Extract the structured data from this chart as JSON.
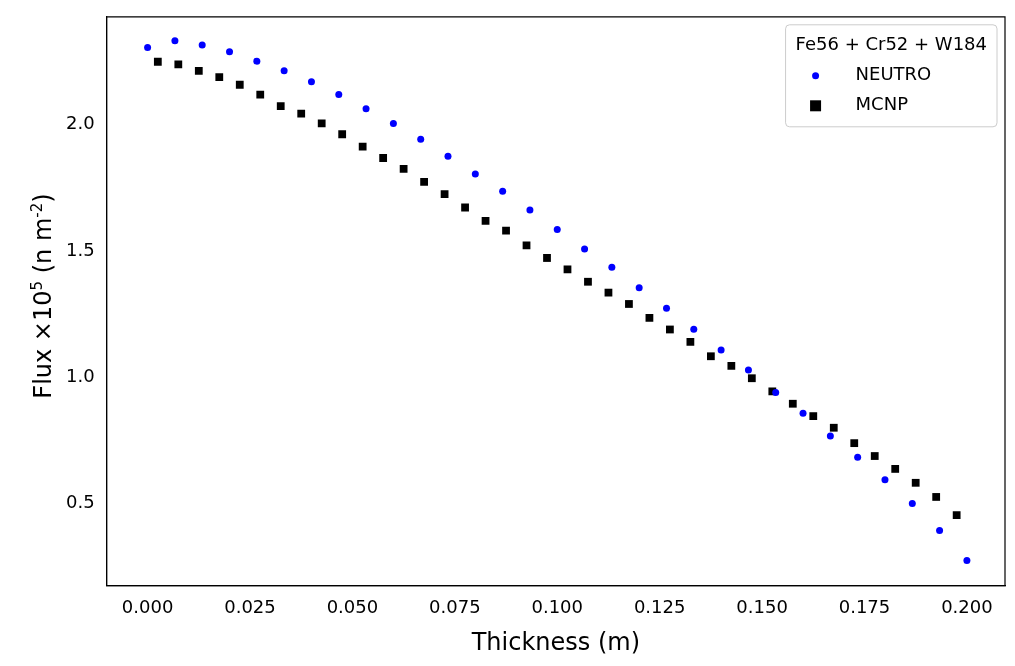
{
  "chart_data": {
    "type": "scatter",
    "xlabel": "Thickness (m)",
    "ylabel": "Flux ×10$^{5}$ (n m$^{-2}$)",
    "legend_title": "Fe56 + Cr52 + W184",
    "legend": "top right",
    "grid": false,
    "xlim": [
      -0.01,
      0.2093
    ],
    "ylim": [
      0.175,
      2.427
    ],
    "xticks": [
      {
        "value": 0,
        "label": "0.000"
      },
      {
        "value": 0.025,
        "label": "0.025"
      },
      {
        "value": 0.05,
        "label": "0.050"
      },
      {
        "value": 0.075,
        "label": "0.075"
      },
      {
        "value": 0.1,
        "label": "0.100"
      },
      {
        "value": 0.125,
        "label": "0.125"
      },
      {
        "value": 0.15,
        "label": "0.150"
      },
      {
        "value": 0.175,
        "label": "0.175"
      },
      {
        "value": 0.2,
        "label": "0.200"
      }
    ],
    "yticks": [
      0.5,
      {
        "value": 1,
        "label": "1.0"
      },
      1.5,
      {
        "value": 2,
        "label": "2.0"
      }
    ],
    "series": [
      {
        "name": "NEUTRO",
        "color": "#0000ff",
        "marker": "circle",
        "x": [
          0,
          0.00667,
          0.01333,
          0.02,
          0.02667,
          0.03333,
          0.04,
          0.04667,
          0.05333,
          0.06,
          0.06667,
          0.07333,
          0.08,
          0.08667,
          0.09333,
          0.1,
          0.10667,
          0.11333,
          0.12,
          0.12667,
          0.13333,
          0.14,
          0.14667,
          0.15333,
          0.16,
          0.16667,
          0.17333,
          0.18,
          0.18667,
          0.19333,
          0.2
        ],
        "values": [
          2.305,
          2.332,
          2.315,
          2.289,
          2.251,
          2.213,
          2.17,
          2.119,
          2.063,
          2.005,
          1.942,
          1.875,
          1.805,
          1.736,
          1.662,
          1.585,
          1.508,
          1.435,
          1.354,
          1.273,
          1.19,
          1.108,
          1.029,
          0.94,
          0.857,
          0.767,
          0.683,
          0.594,
          0.5,
          0.393,
          0.274
        ]
      },
      {
        "name": "MCNP",
        "color": "#000000",
        "marker": "square",
        "x": [
          0.0025,
          0.0075,
          0.0125,
          0.0175,
          0.0225,
          0.0275,
          0.0325,
          0.0375,
          0.0425,
          0.0475,
          0.0525,
          0.0575,
          0.0625,
          0.0675,
          0.0725,
          0.0775,
          0.0825,
          0.0875,
          0.0925,
          0.0975,
          0.1025,
          0.1075,
          0.1125,
          0.1175,
          0.1225,
          0.1275,
          0.1325,
          0.1375,
          0.1425,
          0.1475,
          0.1525,
          0.1575,
          0.1625,
          0.1675,
          0.1725,
          0.1775,
          0.1825,
          0.1875,
          0.1925,
          0.1975
        ],
        "values": [
          2.249,
          2.239,
          2.213,
          2.188,
          2.158,
          2.119,
          2.073,
          2.044,
          2.005,
          1.962,
          1.913,
          1.868,
          1.825,
          1.773,
          1.725,
          1.672,
          1.619,
          1.58,
          1.522,
          1.472,
          1.427,
          1.378,
          1.335,
          1.29,
          1.235,
          1.189,
          1.14,
          1.083,
          1.045,
          0.996,
          0.944,
          0.895,
          0.846,
          0.8,
          0.739,
          0.688,
          0.637,
          0.582,
          0.526,
          0.454
        ]
      }
    ]
  }
}
